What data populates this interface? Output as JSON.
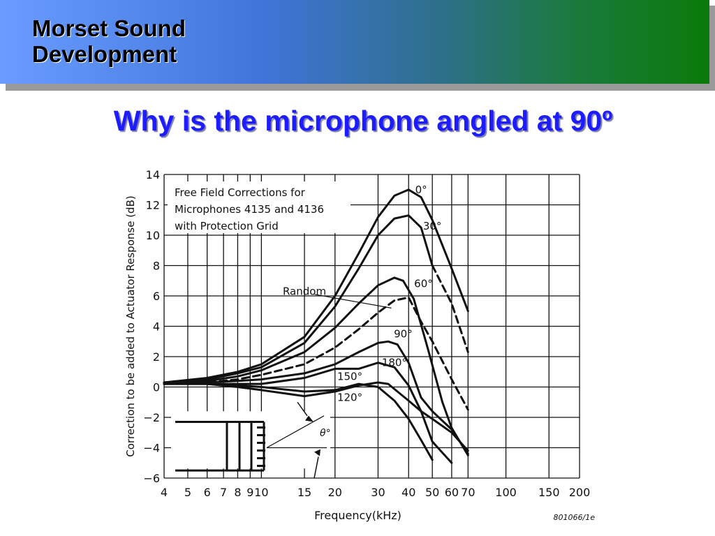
{
  "header": {
    "brand": "Morset Sound\nDevelopment"
  },
  "slide": {
    "title": "Why is the microphone angled at 90º"
  },
  "chart_data": {
    "type": "line",
    "x_scale": "log",
    "xlim": [
      4,
      200
    ],
    "ylim": [
      -6,
      14
    ],
    "x_ticks": [
      4,
      5,
      6,
      7,
      8,
      9,
      10,
      15,
      20,
      30,
      40,
      50,
      60,
      70,
      100,
      150,
      200
    ],
    "x_tick_labels": [
      "4",
      "5",
      "6",
      "7",
      "8",
      "9",
      "10",
      "15",
      "20",
      "30",
      "40",
      "50",
      "60",
      "70",
      "100",
      "150",
      "200"
    ],
    "y_ticks": [
      -6,
      -4,
      -2,
      0,
      2,
      4,
      6,
      8,
      10,
      12,
      14
    ],
    "y_tick_labels": [
      "−6",
      "−4",
      "−2",
      "0",
      "2",
      "4",
      "6",
      "8",
      "10",
      "12",
      "14"
    ],
    "xlabel": "Frequency(kHz)",
    "ylabel": "Correction to be added to Actuator Response (dB)",
    "annotation": [
      "Free Field Corrections for",
      "Microphones 4135 and 4136",
      "with Protection Grid"
    ],
    "figure_id": "801066/1e",
    "angle_symbol": "θ°",
    "grid": true,
    "series": [
      {
        "name": "0°",
        "style": "solid",
        "x": [
          4,
          6,
          8,
          10,
          15,
          20,
          25,
          30,
          35,
          40,
          45,
          50,
          60,
          70
        ],
        "y": [
          0.3,
          0.6,
          1.0,
          1.5,
          3.3,
          6.0,
          8.8,
          11.2,
          12.6,
          13.0,
          12.5,
          11.0,
          7.8,
          5.0
        ]
      },
      {
        "name": "30°",
        "style": "solid",
        "x": [
          4,
          6,
          8,
          10,
          15,
          20,
          25,
          30,
          35,
          40,
          45,
          50
        ],
        "y": [
          0.3,
          0.5,
          0.9,
          1.3,
          2.9,
          5.3,
          7.8,
          10.0,
          11.1,
          11.3,
          10.5,
          8.0
        ]
      },
      {
        "name": "30° (continued)",
        "style": "dashed",
        "x": [
          50,
          60,
          70
        ],
        "y": [
          8.0,
          5.5,
          2.3
        ]
      },
      {
        "name": "60°",
        "style": "solid",
        "x": [
          4,
          6,
          8,
          10,
          15,
          20,
          25,
          30,
          35,
          38,
          42,
          48,
          55,
          60,
          70
        ],
        "y": [
          0.3,
          0.4,
          0.7,
          1.1,
          2.3,
          3.9,
          5.5,
          6.7,
          7.2,
          7.0,
          5.8,
          2.5,
          -1.0,
          -2.7,
          -4.5
        ]
      },
      {
        "name": "Random",
        "style": "dashed",
        "x": [
          4,
          6,
          8,
          10,
          15,
          20,
          25,
          30,
          35,
          40,
          45,
          50,
          60,
          70
        ],
        "y": [
          0.2,
          0.3,
          0.5,
          0.8,
          1.5,
          2.6,
          3.8,
          4.9,
          5.7,
          5.9,
          4.3,
          3.0,
          0.5,
          -1.5
        ]
      },
      {
        "name": "90°",
        "style": "solid",
        "x": [
          4,
          6,
          8,
          10,
          15,
          20,
          25,
          30,
          33,
          36,
          40,
          45,
          50,
          60,
          70
        ],
        "y": [
          0.2,
          0.3,
          0.4,
          0.5,
          0.9,
          1.5,
          2.3,
          2.9,
          3.0,
          2.8,
          1.6,
          -0.7,
          -1.6,
          -2.8,
          -4.4
        ]
      },
      {
        "name": "180°",
        "style": "solid",
        "x": [
          4,
          6,
          8,
          10,
          15,
          20,
          25,
          30,
          35,
          40,
          45,
          50,
          60
        ],
        "y": [
          0.2,
          0.2,
          0.2,
          0.2,
          0.6,
          1.2,
          1.2,
          1.6,
          1.3,
          0.1,
          -1.6,
          -3.6,
          -5.0
        ]
      },
      {
        "name": "150°",
        "style": "solid",
        "x": [
          4,
          6,
          8,
          10,
          15,
          20,
          25,
          30,
          35,
          40,
          45,
          50
        ],
        "y": [
          0.2,
          0.2,
          0.1,
          0.0,
          -0.3,
          -0.2,
          0.2,
          0.0,
          -0.9,
          -2.1,
          -3.5,
          -4.8
        ]
      },
      {
        "name": "120°",
        "style": "solid",
        "x": [
          4,
          6,
          8,
          10,
          15,
          20,
          25,
          30,
          33,
          36,
          40,
          45,
          50,
          60,
          70
        ],
        "y": [
          0.3,
          0.2,
          0.0,
          -0.2,
          -0.6,
          -0.3,
          0.1,
          0.3,
          0.2,
          -0.3,
          -0.9,
          -1.6,
          -2.1,
          -3.0,
          -4.2
        ]
      }
    ],
    "curve_labels": [
      {
        "text": "0°",
        "x": 45,
        "y": 13.0
      },
      {
        "text": "30°",
        "x": 50,
        "y": 10.6
      },
      {
        "text": "60°",
        "x": 46,
        "y": 6.8
      },
      {
        "text": "Random",
        "x": 15,
        "y": 6.3
      },
      {
        "text": "90°",
        "x": 38,
        "y": 3.5
      },
      {
        "text": "180°",
        "x": 35,
        "y": 1.6
      },
      {
        "text": "150°",
        "x": 23,
        "y": 0.7
      },
      {
        "text": "120°",
        "x": 23,
        "y": -0.7
      }
    ]
  }
}
